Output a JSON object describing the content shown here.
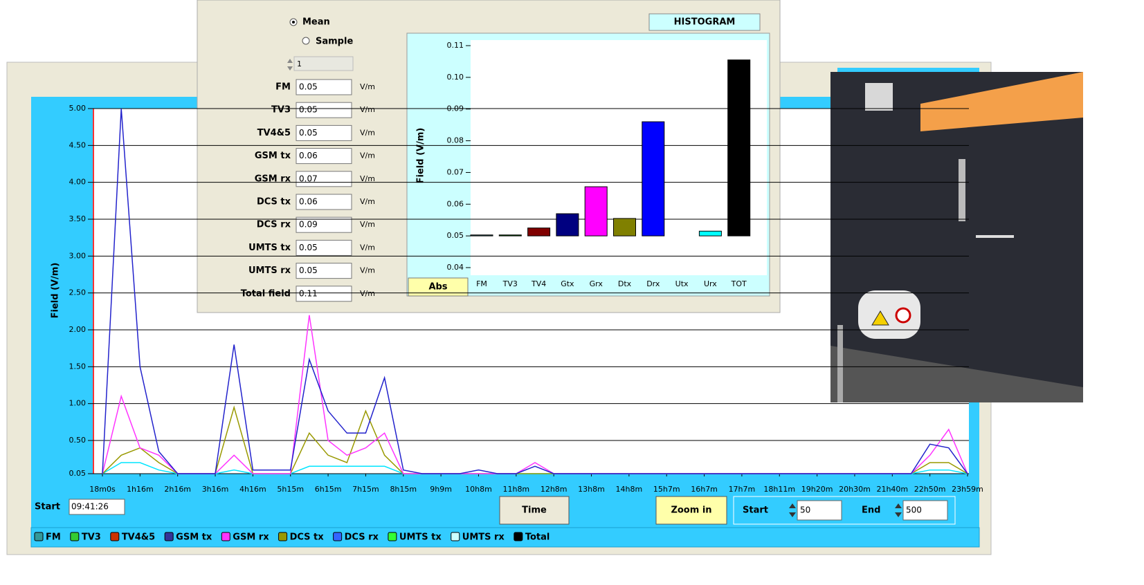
{
  "window": {
    "start_label": "Start",
    "start_time": "09:41:26",
    "time_button": "Time",
    "zoom_button": "Zoom in",
    "range_start_label": "Start",
    "range_start": 50,
    "range_end_label": "End",
    "range_end": 500
  },
  "legend": [
    {
      "label": "FM",
      "color": "#339999"
    },
    {
      "label": "TV3",
      "color": "#33cc33"
    },
    {
      "label": "TV4&5",
      "color": "#cc3300"
    },
    {
      "label": "GSM tx",
      "color": "#333399"
    },
    {
      "label": "GSM rx",
      "color": "#ff33ff"
    },
    {
      "label": "DCS tx",
      "color": "#999900"
    },
    {
      "label": "DCS rx",
      "color": "#3366ff"
    },
    {
      "label": "UMTS tx",
      "color": "#33ff33"
    },
    {
      "label": "UMTS rx",
      "color": "#ccffff"
    },
    {
      "label": "Total",
      "color": "#000000"
    }
  ],
  "panel": {
    "mean_label": "Mean",
    "sample_label": "Sample",
    "sample_index": 1,
    "histogram_button": "HISTOGRAM",
    "abs_button": "Abs",
    "fields": [
      {
        "label": "FM",
        "value": 0.05,
        "unit": "V/m"
      },
      {
        "label": "TV3",
        "value": 0.05,
        "unit": "V/m"
      },
      {
        "label": "TV4&5",
        "value": 0.05,
        "unit": "V/m"
      },
      {
        "label": "GSM tx",
        "value": 0.06,
        "unit": "V/m"
      },
      {
        "label": "GSM rx",
        "value": 0.07,
        "unit": "V/m"
      },
      {
        "label": "DCS tx",
        "value": 0.06,
        "unit": "V/m"
      },
      {
        "label": "DCS rx",
        "value": 0.09,
        "unit": "V/m"
      },
      {
        "label": "UMTS tx",
        "value": 0.05,
        "unit": "V/m"
      },
      {
        "label": "UMTS rx",
        "value": 0.05,
        "unit": "V/m"
      },
      {
        "label": "Total field",
        "value": 0.11,
        "unit": "V/m"
      }
    ]
  },
  "chart_data": [
    {
      "type": "line",
      "y_label": "Field (V/m)",
      "categories": [
        "18m0s",
        null,
        "1h16m",
        null,
        "2h16m",
        null,
        "3h16m",
        null,
        "4h16m",
        null,
        "5h15m",
        null,
        "6h15m",
        null,
        "7h15m",
        null,
        "8h15m",
        null,
        "9h9m",
        null,
        "10h8m",
        null,
        "11h8m",
        null,
        "12h8m",
        null,
        "13h8m",
        null,
        "14h8m",
        null,
        "15h7m",
        null,
        "16h7m",
        null,
        "17h7m",
        null,
        "18h11m",
        null,
        "19h20m",
        null,
        "20h30m",
        null,
        "21h40m",
        null,
        "22h50m",
        null,
        "23h59m"
      ],
      "series": [
        {
          "name": "UMTS rx",
          "color": "#00e5ff",
          "values": [
            0.05,
            0.2,
            0.2,
            0.1,
            0.05,
            0.05,
            0.05,
            0.1,
            0.05,
            0.05,
            0.05,
            0.15,
            0.15,
            0.15,
            0.15,
            0.15,
            0.05,
            0.05,
            0.05,
            0.05,
            0.05,
            0.05,
            0.05,
            0.05,
            0.05,
            0.05,
            0.05,
            0.05,
            0.05,
            0.05,
            0.05,
            0.05,
            0.05,
            0.05,
            0.05,
            0.05,
            0.05,
            0.05,
            0.05,
            0.05,
            0.05,
            0.05,
            0.05,
            0.05,
            0.1,
            0.1,
            0.05
          ]
        },
        {
          "name": "DCS tx",
          "color": "#999900",
          "values": [
            0.05,
            0.3,
            0.4,
            0.2,
            0.05,
            0.05,
            0.05,
            0.95,
            0.05,
            0.05,
            0.05,
            0.6,
            0.3,
            0.2,
            0.9,
            0.3,
            0.05,
            0.05,
            0.05,
            0.05,
            0.05,
            0.05,
            0.05,
            0.05,
            0.05,
            0.05,
            0.05,
            0.05,
            0.05,
            0.05,
            0.05,
            0.05,
            0.05,
            0.05,
            0.05,
            0.05,
            0.05,
            0.05,
            0.05,
            0.05,
            0.05,
            0.05,
            0.05,
            0.05,
            0.2,
            0.2,
            0.05
          ]
        },
        {
          "name": "GSM rx",
          "color": "#ff33ff",
          "values": [
            0.05,
            1.1,
            0.4,
            0.3,
            0.05,
            0.05,
            0.05,
            0.3,
            0.05,
            0.05,
            0.05,
            2.2,
            0.5,
            0.3,
            0.4,
            0.6,
            0.05,
            0.05,
            0.05,
            0.05,
            0.05,
            0.05,
            0.05,
            0.2,
            0.05,
            0.05,
            0.05,
            0.05,
            0.05,
            0.05,
            0.05,
            0.05,
            0.05,
            0.05,
            0.05,
            0.05,
            0.05,
            0.05,
            0.05,
            0.05,
            0.05,
            0.05,
            0.05,
            0.05,
            0.3,
            0.65,
            0.05
          ]
        },
        {
          "name": "GSM tx",
          "color": "#2222cc",
          "values": [
            0.05,
            5.0,
            1.5,
            0.35,
            0.05,
            0.05,
            0.05,
            1.8,
            0.1,
            0.1,
            0.1,
            1.6,
            0.9,
            0.6,
            0.6,
            1.35,
            0.1,
            0.05,
            0.05,
            0.05,
            0.1,
            0.05,
            0.05,
            0.15,
            0.05,
            0.05,
            0.05,
            0.05,
            0.05,
            0.05,
            0.05,
            0.05,
            0.05,
            0.05,
            0.05,
            0.05,
            0.05,
            0.05,
            0.05,
            0.05,
            0.05,
            0.05,
            0.05,
            0.05,
            0.45,
            0.4,
            0.05
          ]
        }
      ],
      "ylim": [
        0.05,
        5.0
      ],
      "yticks": [
        0.05,
        {
          "value": 0.5,
          "label": "0.50"
        },
        {
          "value": 1,
          "label": "1.00"
        },
        {
          "value": 1.5,
          "label": "1.50"
        },
        {
          "value": 2,
          "label": "2.00"
        },
        {
          "value": 2.5,
          "label": "2.50"
        },
        {
          "value": 3,
          "label": "3.00"
        },
        {
          "value": 3.5,
          "label": "3.50"
        },
        {
          "value": 4,
          "label": "4.00"
        },
        {
          "value": 4.5,
          "label": "4.50"
        },
        {
          "value": 5,
          "label": "5.00"
        }
      ],
      "grid": true
    },
    {
      "type": "bar",
      "y_label": "Field (V/m)",
      "categories": [
        "FM",
        "TV3",
        "TV4",
        "Gtx",
        "Grx",
        "Dtx",
        "Drx",
        "Utx",
        "Urx",
        "TOT"
      ],
      "values": [
        0.0503,
        0.0503,
        0.0525,
        0.057,
        0.0655,
        0.0555,
        0.086,
        0.05,
        0.0515,
        0.1055
      ],
      "colors": [
        "#336666",
        "#006600",
        "#800000",
        "#000080",
        "#ff00ff",
        "#808000",
        "#0000ff",
        "#00cc00",
        "#00ffff",
        "#000000"
      ],
      "baseline": 0.05,
      "ylim": [
        0.04,
        0.11
      ],
      "yticks": [
        0.04,
        0.05,
        0.06,
        0.07,
        0.08,
        0.09,
        {
          "value": 0.1,
          "label": "0.10"
        },
        0.11
      ],
      "grid": false
    }
  ]
}
